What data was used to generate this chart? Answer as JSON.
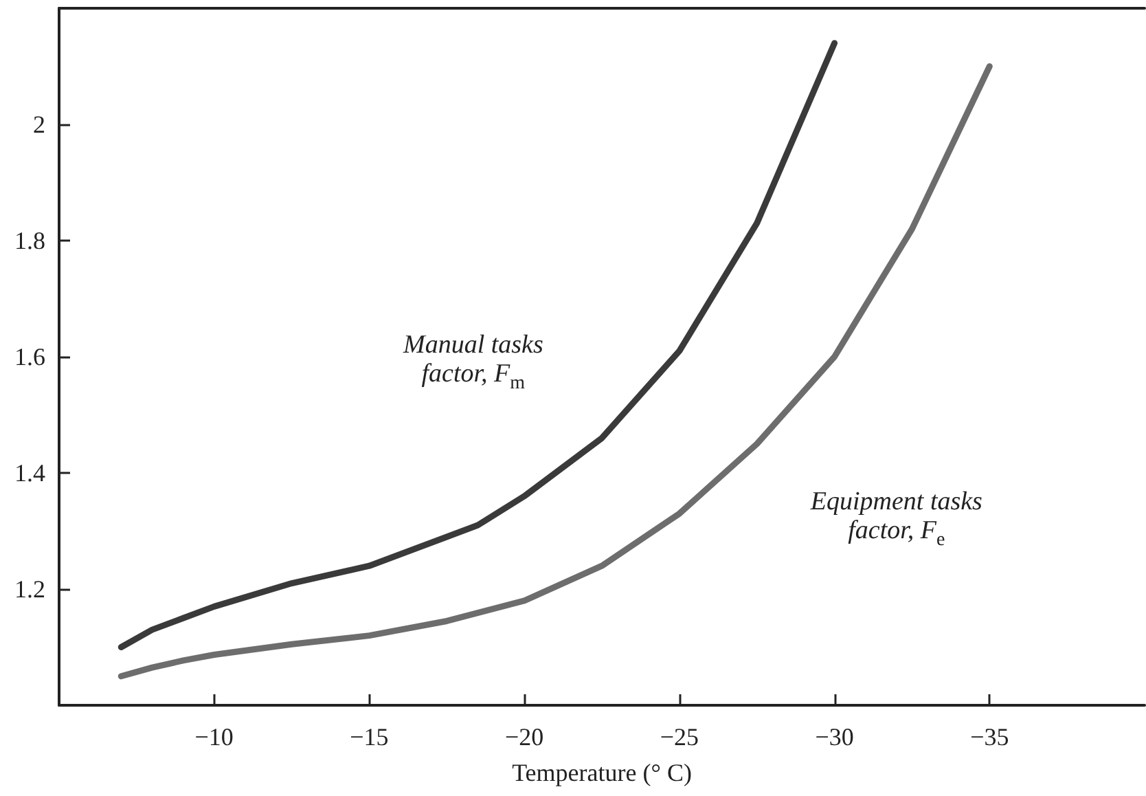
{
  "chart_data": {
    "type": "line",
    "xlabel": "Temperature (° C)",
    "xlim": [
      -5,
      -40
    ],
    "xticks": [
      -10,
      -15,
      -20,
      -25,
      -30,
      -35
    ],
    "ylim": [
      1.0,
      2.2
    ],
    "yticks": [
      1.2,
      1.4,
      1.6,
      1.8,
      2
    ],
    "grid": false,
    "legend": false,
    "marker": "none",
    "line_style": "solid",
    "series": [
      {
        "name": "Manual tasks factor, F$_{m}$",
        "color": "#3a3a3a",
        "x": [
          -7,
          -8,
          -9,
          -10,
          -12.5,
          -15,
          -17.5,
          -18.5,
          -20,
          -22.5,
          -25,
          -27.5,
          -30
        ],
        "values": [
          1.1,
          1.13,
          1.15,
          1.17,
          1.21,
          1.24,
          1.29,
          1.31,
          1.36,
          1.46,
          1.61,
          1.83,
          2.14
        ]
      },
      {
        "name": "Equipment tasks factor, F$_{e}$",
        "color": "#6d6d6d",
        "x": [
          -7,
          -8,
          -9,
          -10,
          -12.5,
          -15,
          -17.5,
          -20,
          -22.5,
          -25,
          -27.5,
          -30,
          -32.5,
          -35
        ],
        "values": [
          1.05,
          1.065,
          1.077,
          1.087,
          1.105,
          1.12,
          1.145,
          1.18,
          1.24,
          1.33,
          1.45,
          1.6,
          1.82,
          2.1
        ]
      }
    ]
  }
}
